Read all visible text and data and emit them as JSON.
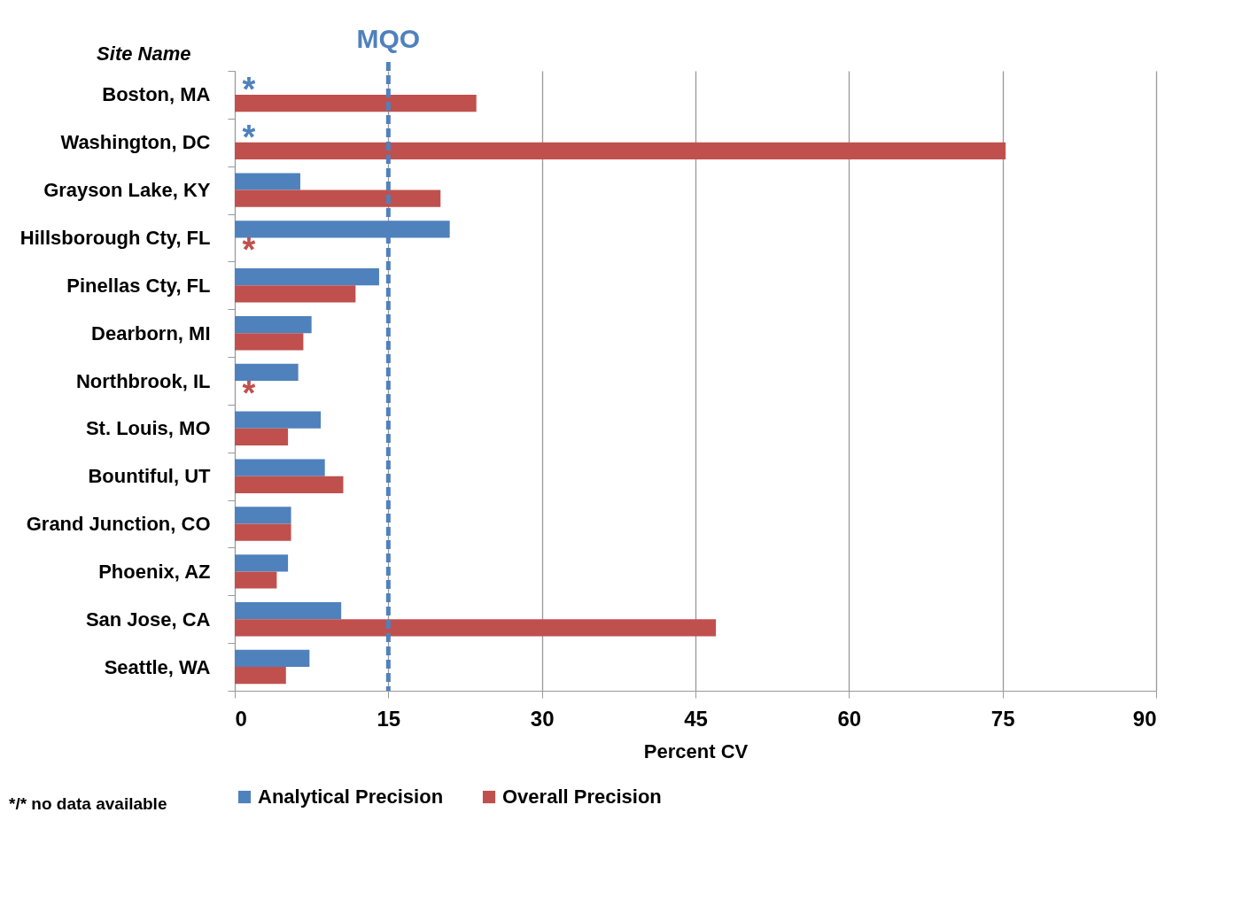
{
  "chart_data": {
    "type": "bar",
    "orientation": "horizontal",
    "xlabel": "Percent CV",
    "ylabel": "Site Name",
    "categories": [
      "Boston, MA",
      "Washington, DC",
      "Grayson Lake, KY",
      "Hillsborough Cty, FL",
      "Pinellas Cty, FL",
      "Dearborn, MI",
      "Northbrook, IL",
      "St. Louis, MO",
      "Bountiful, UT",
      "Grand Junction, CO",
      "Phoenix, AZ",
      "San Jose, CA",
      "Seattle, WA"
    ],
    "series": [
      {
        "name": "Analytical Precision",
        "color": "#4f81bd",
        "values": [
          null,
          null,
          6.4,
          21.0,
          14.1,
          7.5,
          6.2,
          8.4,
          8.8,
          5.5,
          5.2,
          10.4,
          7.3
        ]
      },
      {
        "name": "Overall Precision",
        "color": "#c0504d",
        "values": [
          23.6,
          75.3,
          20.1,
          null,
          11.8,
          6.7,
          null,
          5.2,
          10.6,
          5.5,
          4.1,
          47.0,
          5.0
        ]
      }
    ],
    "xlim": [
      0,
      90
    ],
    "xticks": [
      0,
      15,
      30,
      45,
      60,
      75,
      90
    ],
    "grid": "x",
    "legend": "bottom",
    "ref_lines": [
      {
        "axis": "x",
        "value": 15,
        "label": "MQO",
        "color": "#4f81bd",
        "line_style": "dashed"
      }
    ],
    "annotations": [
      {
        "text": "*",
        "y": "Boston, MA"
      },
      {
        "text": "*",
        "y": "Washington, DC"
      },
      {
        "text": "*",
        "y": "Hillsborough Cty, FL"
      },
      {
        "text": "*",
        "y": "Northbrook, IL"
      },
      "*/* no data available"
    ]
  }
}
